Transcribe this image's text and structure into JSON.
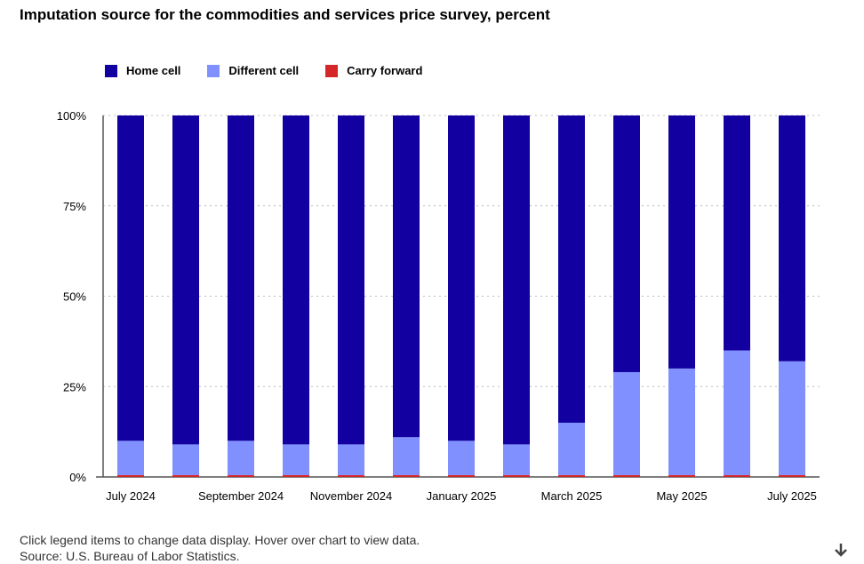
{
  "chart_data": {
    "type": "bar",
    "title": "Imputation source for the commodities and services price survey, percent",
    "categories": [
      "July 2024",
      "August 2024",
      "September 2024",
      "October 2024",
      "November 2024",
      "December 2024",
      "January 2025",
      "February 2025",
      "March 2025",
      "April 2025",
      "May 2025",
      "June 2025",
      "July 2025"
    ],
    "x_tick_labels": [
      "July 2024",
      "September 2024",
      "November 2024",
      "January 2025",
      "March 2025",
      "May 2025",
      "July 2025"
    ],
    "y_tick_labels": [
      "0%",
      "25%",
      "50%",
      "75%",
      "100%"
    ],
    "ylim": [
      0,
      100
    ],
    "stacked": true,
    "grid": true,
    "legend_position": "top-left",
    "series": [
      {
        "name": "Carry forward",
        "color": "#d62728",
        "values": [
          0.5,
          0.5,
          0.5,
          0.5,
          0.5,
          0.5,
          0.5,
          0.5,
          0.5,
          0.5,
          0.5,
          0.5,
          0.5
        ]
      },
      {
        "name": "Different cell",
        "color": "#8090ff",
        "values": [
          9.5,
          8.5,
          9.5,
          8.5,
          8.5,
          10.5,
          9.5,
          8.5,
          14.5,
          28.5,
          29.5,
          34.5,
          31.5
        ]
      },
      {
        "name": "Home cell",
        "color": "#1200a0",
        "values": [
          90,
          91,
          90,
          91,
          91,
          89,
          90,
          91,
          85,
          71,
          70,
          65,
          68
        ]
      }
    ]
  },
  "legend_order": [
    "Home cell",
    "Different cell",
    "Carry forward"
  ],
  "footer": {
    "instructions": "Click legend items to change data display. Hover over chart to view data.",
    "source": "Source: U.S. Bureau of Labor Statistics."
  },
  "icons": {
    "download": "download-arrow-icon"
  }
}
